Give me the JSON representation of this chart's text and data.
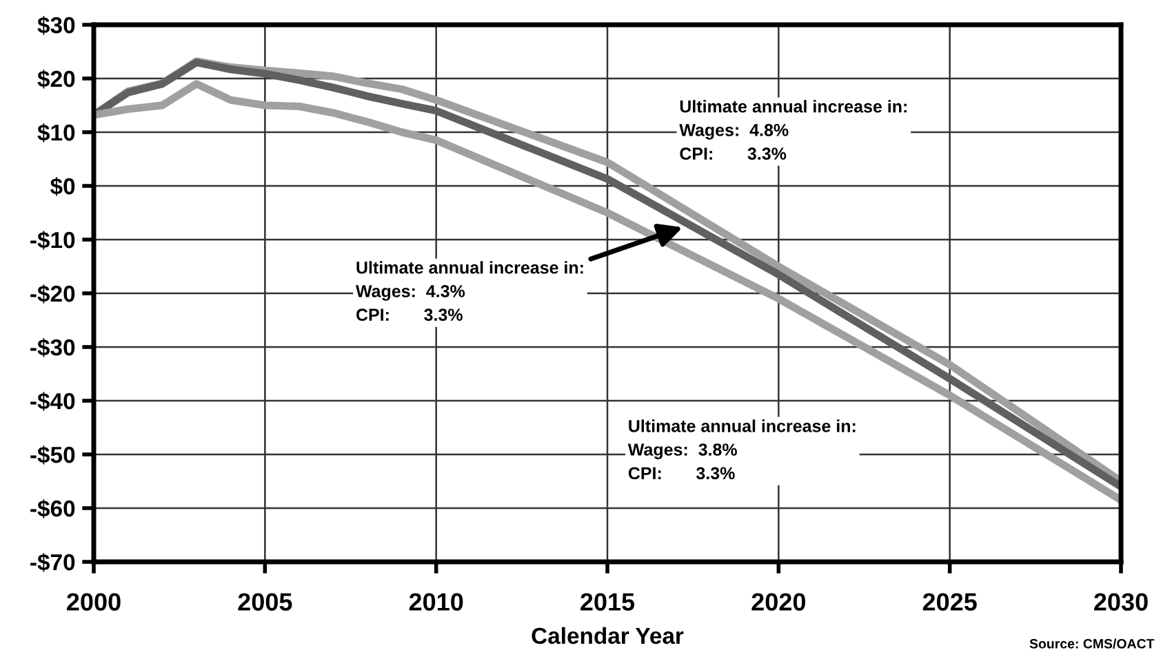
{
  "chart_data": {
    "type": "line",
    "xlabel": "Calendar Year",
    "x": [
      2000,
      2001,
      2002,
      2003,
      2004,
      2005,
      2006,
      2007,
      2008,
      2009,
      2010,
      2015,
      2020,
      2025,
      2030
    ],
    "series": [
      {
        "color": "#a0a0a0",
        "values": [
          13.2,
          17.6,
          19.1,
          23.2,
          22.1,
          21.5,
          21,
          20.4,
          19.1,
          18,
          16,
          4.4,
          -15,
          -33.3,
          -55
        ]
      },
      {
        "color": "#606060",
        "values": [
          13.2,
          17.4,
          19,
          23,
          21.7,
          20.9,
          19.7,
          18.3,
          16.7,
          15.3,
          14,
          1.3,
          -16.5,
          -35.9,
          -56
        ]
      },
      {
        "color": "#a0a0a0",
        "values": [
          13.2,
          14.3,
          15,
          19,
          16,
          15,
          14.8,
          13.6,
          11.9,
          10,
          8.5,
          -5,
          -21,
          -39,
          -58.5
        ]
      }
    ],
    "xlim": [
      2000,
      2030
    ],
    "xticks": [
      2000,
      2005,
      2010,
      2015,
      2020,
      2025,
      2030
    ],
    "ylim": [
      -70,
      30
    ],
    "yticks": [
      {
        "value": 30,
        "label": "$30"
      },
      {
        "value": 20,
        "label": "$20"
      },
      {
        "value": 10,
        "label": "$10"
      },
      {
        "value": 0,
        "label": "$0"
      },
      {
        "value": -10,
        "label": "-$10"
      },
      {
        "value": -20,
        "label": "-$20"
      },
      {
        "value": -30,
        "label": "-$30"
      },
      {
        "value": -40,
        "label": "-$40"
      },
      {
        "value": -50,
        "label": "-$50"
      },
      {
        "value": -60,
        "label": "-$60"
      },
      {
        "value": -70,
        "label": "-$70"
      }
    ],
    "grid": true,
    "legend": false,
    "marker": "none",
    "line_style": "solid",
    "annotations": [
      "Ultimate annual increase in:\nWages:  4.8%\nCPI:       3.3%",
      {
        "text": "Ultimate annual increase in:\nWages:  4.3%\nCPI:       3.3%",
        "x": 2017.2,
        "y": -7.7
      },
      "Ultimate annual increase in:\nWages:  3.8%\nCPI:       3.3%",
      "Source: CMS/OACT"
    ]
  }
}
